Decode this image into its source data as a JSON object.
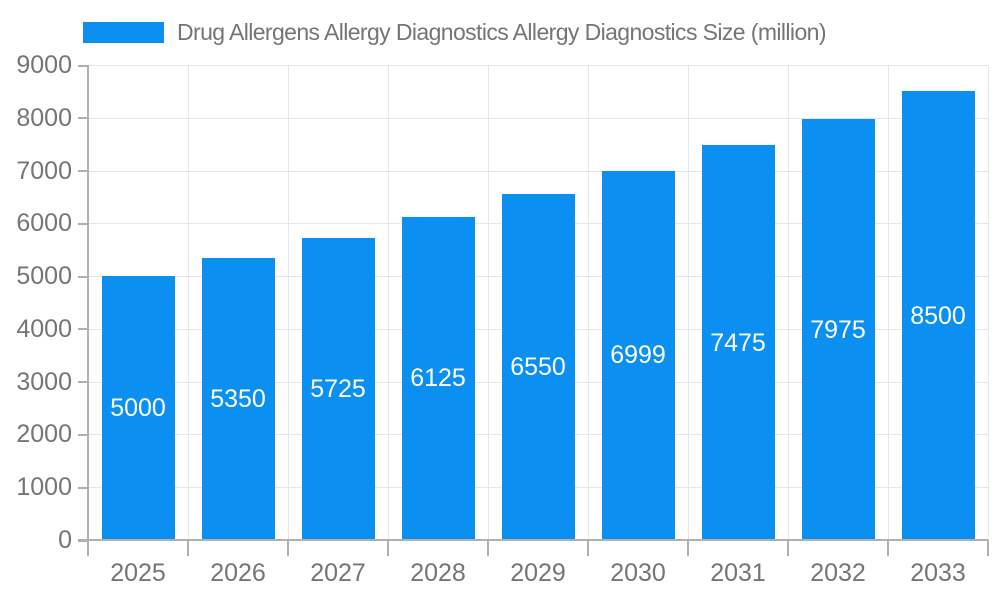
{
  "legend": {
    "label": "Drug Allergens Allergy Diagnostics Allergy Diagnostics Size (million)"
  },
  "chart_data": {
    "type": "bar",
    "categories": [
      "2025",
      "2026",
      "2027",
      "2028",
      "2029",
      "2030",
      "2031",
      "2032",
      "2033"
    ],
    "values": [
      5000,
      5350,
      5725,
      6125,
      6550,
      6999,
      7475,
      7975,
      8500
    ],
    "series": [
      {
        "name": "Drug Allergens Allergy Diagnostics Allergy Diagnostics Size (million)",
        "values": [
          5000,
          5350,
          5725,
          6125,
          6550,
          6999,
          7475,
          7975,
          8500
        ]
      }
    ],
    "value_labels": [
      "5000",
      "5350",
      "5725",
      "6125",
      "6550",
      "6999",
      "7475",
      "7975",
      "8500"
    ],
    "title": "",
    "xlabel": "",
    "ylabel": "",
    "ylim": [
      0,
      9000
    ],
    "ytick_step": 1000,
    "ytick_labels": [
      "0",
      "1000",
      "2000",
      "3000",
      "4000",
      "5000",
      "6000",
      "7000",
      "8000",
      "9000"
    ],
    "grid": true,
    "legend_position": "top"
  },
  "colors": {
    "bar": "#0b90f1",
    "grid": "#e6e6e6",
    "axis": "#b0b0b0",
    "text": "#757575",
    "value_label": "#ffffff",
    "background": "#ffffff"
  }
}
